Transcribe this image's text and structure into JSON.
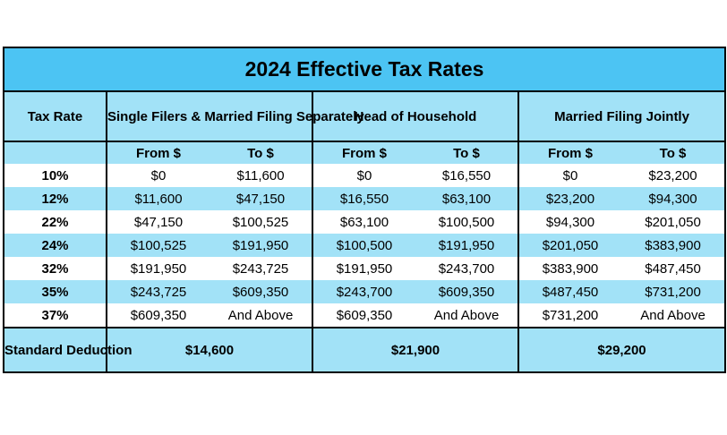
{
  "title": "2024 Effective Tax Rates",
  "headers": {
    "tax_rate": "Tax Rate",
    "single": "Single Filers & Married Filing Separately",
    "head_of_household": "Head of Household",
    "married_jointly": "Married Filing Jointly"
  },
  "subheaders": {
    "from": "From $",
    "to": "To $"
  },
  "rows": [
    {
      "rate": "10%",
      "single_from": "$0",
      "single_to": "$11,600",
      "hoh_from": "$0",
      "hoh_to": "$16,550",
      "mfj_from": "$0",
      "mfj_to": "$23,200"
    },
    {
      "rate": "12%",
      "single_from": "$11,600",
      "single_to": "$47,150",
      "hoh_from": "$16,550",
      "hoh_to": "$63,100",
      "mfj_from": "$23,200",
      "mfj_to": "$94,300"
    },
    {
      "rate": "22%",
      "single_from": "$47,150",
      "single_to": "$100,525",
      "hoh_from": "$63,100",
      "hoh_to": "$100,500",
      "mfj_from": "$94,300",
      "mfj_to": "$201,050"
    },
    {
      "rate": "24%",
      "single_from": "$100,525",
      "single_to": "$191,950",
      "hoh_from": "$100,500",
      "hoh_to": "$191,950",
      "mfj_from": "$201,050",
      "mfj_to": "$383,900"
    },
    {
      "rate": "32%",
      "single_from": "$191,950",
      "single_to": "$243,725",
      "hoh_from": "$191,950",
      "hoh_to": "$243,700",
      "mfj_from": "$383,900",
      "mfj_to": "$487,450"
    },
    {
      "rate": "35%",
      "single_from": "$243,725",
      "single_to": "$609,350",
      "hoh_from": "$243,700",
      "hoh_to": "$609,350",
      "mfj_from": "$487,450",
      "mfj_to": "$731,200"
    },
    {
      "rate": "37%",
      "single_from": "$609,350",
      "single_to": "And Above",
      "hoh_from": "$609,350",
      "hoh_to": "And Above",
      "mfj_from": "$731,200",
      "mfj_to": "And Above"
    }
  ],
  "standard_deduction": {
    "label": "Standard Deduction",
    "single": "$14,600",
    "head_of_household": "$21,900",
    "married_jointly": "$29,200"
  },
  "colors": {
    "title_background": "#4cc4f3",
    "band_background": "#a2e2f7",
    "plain_background": "#ffffff",
    "border": "#000000"
  }
}
